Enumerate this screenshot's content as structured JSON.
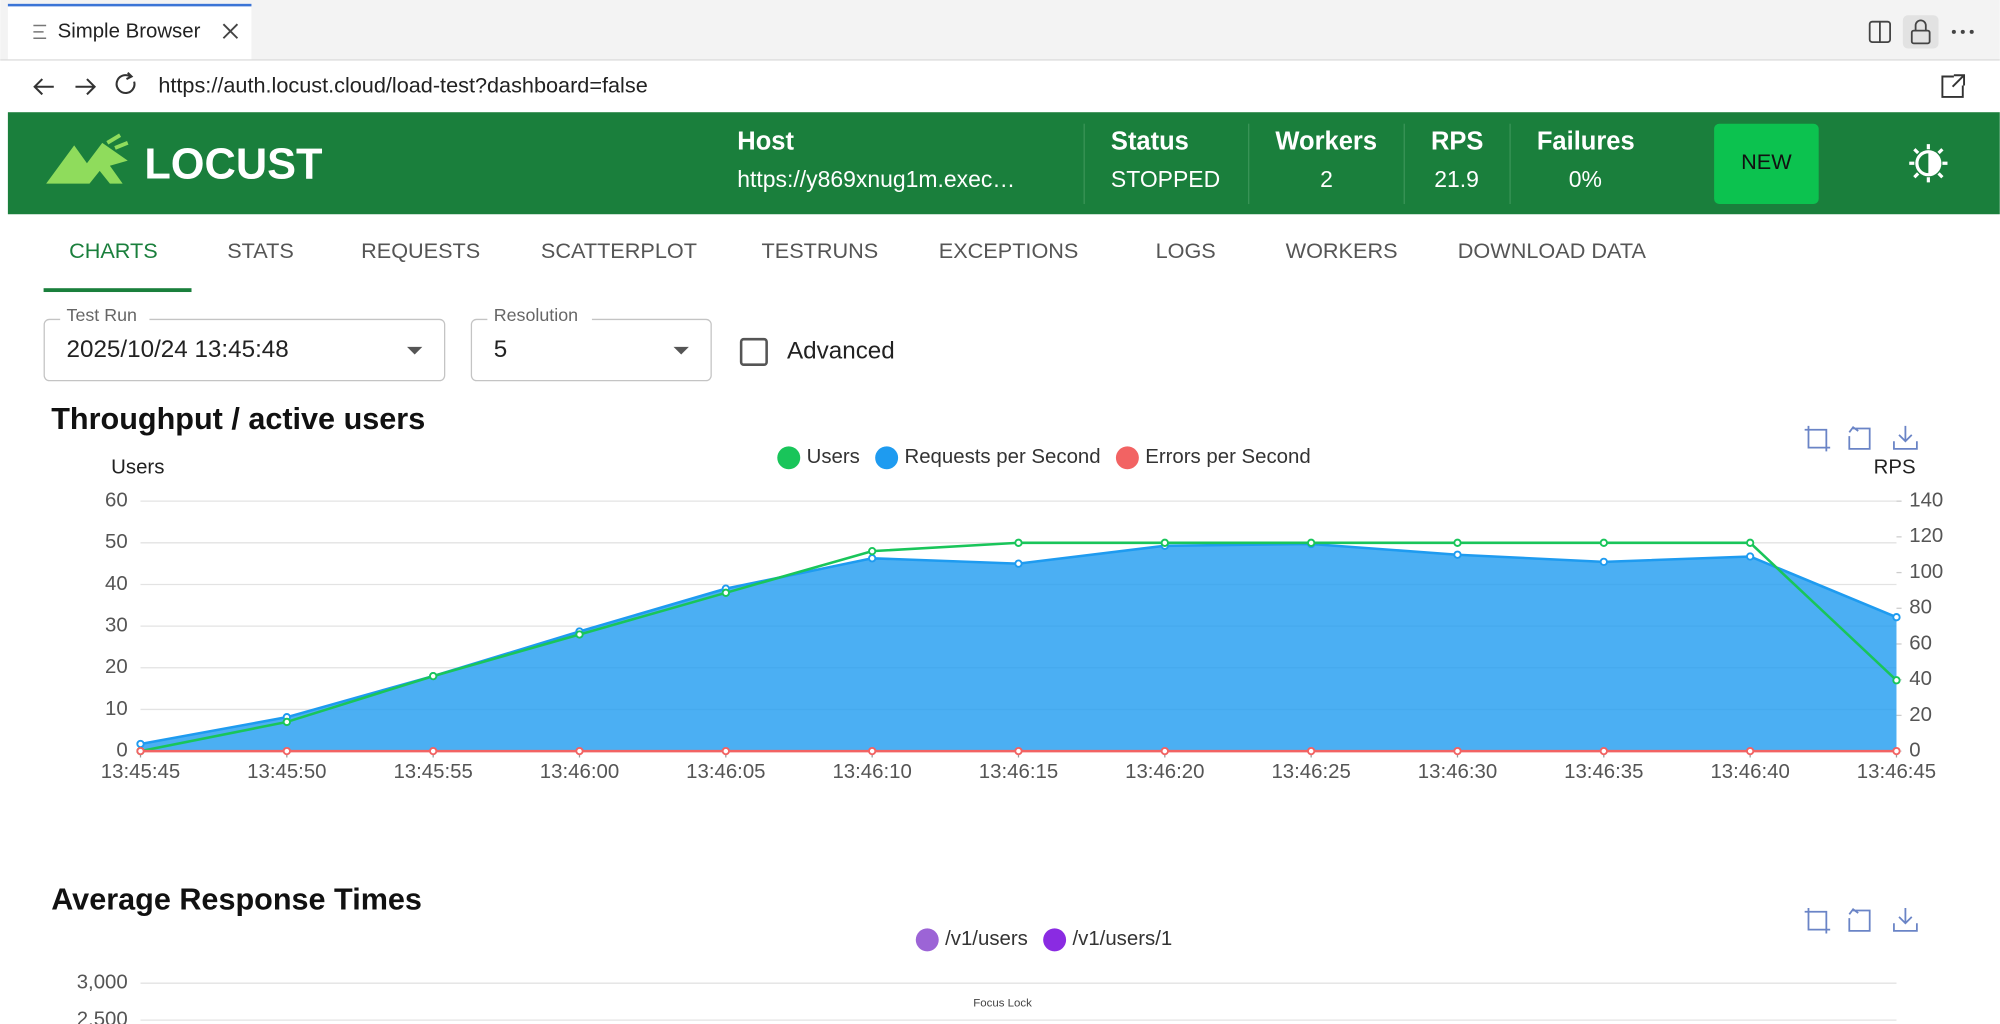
{
  "browser": {
    "tab_title": "Simple Browser",
    "url": "https://auth.locust.cloud/load-test?dashboard=false"
  },
  "header": {
    "logo": "LOCUST",
    "stats": [
      {
        "label": "Host",
        "value": "https://y869xnug1m.exec…"
      },
      {
        "label": "Status",
        "value": "STOPPED"
      },
      {
        "label": "Workers",
        "value": "2"
      },
      {
        "label": "RPS",
        "value": "21.9"
      },
      {
        "label": "Failures",
        "value": "0%"
      }
    ],
    "new_button": "NEW"
  },
  "tabs": [
    "CHARTS",
    "STATS",
    "REQUESTS",
    "SCATTERPLOT",
    "TESTRUNS",
    "EXCEPTIONS",
    "LOGS",
    "WORKERS",
    "DOWNLOAD DATA"
  ],
  "controls": {
    "test_run": {
      "label": "Test Run",
      "value": "2025/10/24 13:45:48"
    },
    "resolution": {
      "label": "Resolution",
      "value": "5"
    },
    "advanced": "Advanced"
  },
  "chart_data": [
    {
      "type": "line",
      "title": "Throughput / active users",
      "y_label": "Users",
      "y2_label": "RPS",
      "x": [
        "13:45:45",
        "13:45:50",
        "13:45:55",
        "13:46:00",
        "13:46:05",
        "13:46:10",
        "13:46:15",
        "13:46:20",
        "13:46:25",
        "13:46:30",
        "13:46:35",
        "13:46:40",
        "13:46:45"
      ],
      "series": [
        {
          "name": "Users",
          "color": "#19c55a",
          "axis": "y",
          "values": [
            0,
            7,
            18,
            28,
            38,
            48,
            50,
            50,
            50,
            50,
            50,
            50,
            17
          ]
        },
        {
          "name": "Requests per Second",
          "color": "#1e9bf0",
          "axis": "y2",
          "area": true,
          "values": [
            4,
            19,
            42,
            67,
            91,
            108,
            105,
            115,
            116,
            110,
            106,
            109,
            75
          ]
        },
        {
          "name": "Errors per Second",
          "color": "#f26363",
          "axis": "y2",
          "values": [
            0,
            0,
            0,
            0,
            0,
            0,
            0,
            0,
            0,
            0,
            0,
            0,
            0
          ]
        }
      ],
      "ylim": [
        0,
        60
      ],
      "yticks": [
        0,
        10,
        20,
        30,
        40,
        50,
        60
      ],
      "y2lim": [
        0,
        140
      ],
      "y2ticks": [
        0,
        20,
        40,
        60,
        80,
        100,
        120,
        140
      ],
      "grid": true
    },
    {
      "type": "line",
      "title": "Average Response Times",
      "series": [
        {
          "name": "/v1/users",
          "color": "#9c64d6"
        },
        {
          "name": "/v1/users/1",
          "color": "#8a2be2"
        }
      ],
      "ylim": [
        0,
        3000
      ],
      "yticks": [
        {
          "value": 3000,
          "label": "3,000"
        },
        {
          "value": 2500,
          "label": "2,500"
        }
      ],
      "grid": true
    }
  ],
  "overlay": "Focus Lock"
}
